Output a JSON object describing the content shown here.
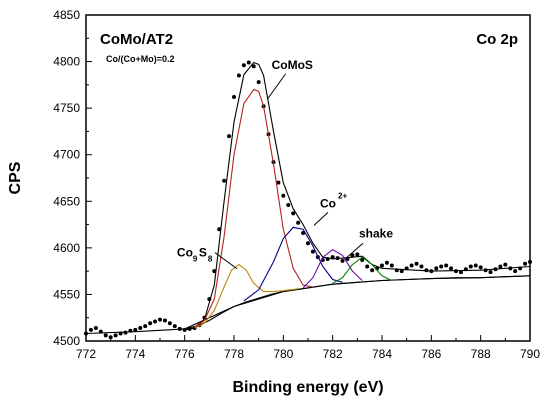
{
  "chart_data": {
    "type": "line",
    "title": "CoMo/AT2",
    "subtitle": "Co/(Co+Mo)=0.2",
    "panel_label": "Co 2p",
    "xlabel": "Binding energy (eV)",
    "ylabel": "CPS",
    "xlim": [
      772,
      790
    ],
    "ylim": [
      4500,
      4850
    ],
    "x_ticks": [
      772,
      774,
      776,
      778,
      780,
      782,
      784,
      786,
      788,
      790
    ],
    "y_ticks": [
      4500,
      4550,
      4600,
      4650,
      4700,
      4750,
      4800,
      4850
    ],
    "grid": false,
    "legend": "none",
    "annotations": [
      {
        "text": "CoMoS",
        "at": [
          779.2,
          4790
        ]
      },
      {
        "text": "Co",
        "sup": "2+",
        "at": [
          781.0,
          4622
        ]
      },
      {
        "text": "shake",
        "at": [
          782.5,
          4592
        ]
      },
      {
        "text": "Co",
        "sub1": "9",
        "mid": "S",
        "sub2": "8",
        "at": [
          778.2,
          4582
        ]
      }
    ],
    "series": [
      {
        "name": "",
        "style": "dots",
        "color": "#000000",
        "x": [
          772.0,
          772.2,
          772.4,
          772.6,
          772.8,
          773.0,
          773.2,
          773.4,
          773.6,
          773.8,
          774.0,
          774.2,
          774.4,
          774.6,
          774.8,
          775.0,
          775.2,
          775.4,
          775.6,
          775.8,
          776.0,
          776.2,
          776.4,
          776.6,
          776.8,
          777.0,
          777.2,
          777.4,
          777.6,
          777.8,
          778.0,
          778.2,
          778.4,
          778.6,
          778.8,
          779.0,
          779.2,
          779.4,
          779.6,
          779.8,
          780.0,
          780.2,
          780.4,
          780.6,
          780.8,
          781.0,
          781.2,
          781.4,
          781.6,
          781.8,
          782.0,
          782.2,
          782.4,
          782.6,
          782.8,
          783.0,
          783.2,
          783.4,
          783.6,
          783.8,
          784.0,
          784.2,
          784.4,
          784.6,
          784.8,
          785.0,
          785.2,
          785.4,
          785.6,
          785.8,
          786.0,
          786.2,
          786.4,
          786.6,
          786.8,
          787.0,
          787.2,
          787.4,
          787.6,
          787.8,
          788.0,
          788.2,
          788.4,
          788.6,
          788.8,
          789.0,
          789.2,
          789.4,
          789.6,
          789.8,
          790.0
        ],
        "y": [
          4508,
          4512,
          4514,
          4510,
          4506,
          4504,
          4506,
          4508,
          4509,
          4511,
          4512,
          4514,
          4516,
          4519,
          4521,
          4523,
          4522,
          4519,
          4516,
          4513,
          4512,
          4513,
          4514,
          4517,
          4525,
          4545,
          4575,
          4620,
          4672,
          4720,
          4762,
          4785,
          4796,
          4799,
          4795,
          4778,
          4752,
          4722,
          4692,
          4670,
          4656,
          4646,
          4637,
          4627,
          4616,
          4605,
          4596,
          4590,
          4587,
          4588,
          4590,
          4589,
          4586,
          4588,
          4592,
          4593,
          4587,
          4580,
          4576,
          4578,
          4581,
          4584,
          4581,
          4576,
          4575,
          4578,
          4581,
          4583,
          4580,
          4576,
          4575,
          4578,
          4580,
          4581,
          4578,
          4575,
          4574,
          4577,
          4580,
          4581,
          4579,
          4576,
          4574,
          4577,
          4580,
          4582,
          4578,
          4575,
          4578,
          4583,
          4585
        ]
      },
      {
        "name": "",
        "style": "line",
        "color": "#000000",
        "x": [
          776.0,
          776.4,
          776.8,
          777.2,
          777.6,
          778.0,
          778.4,
          778.8,
          779.0,
          779.2,
          779.6,
          780.0,
          780.4,
          780.8,
          781.2,
          781.6,
          782.0,
          782.4,
          782.8,
          783.2,
          783.6,
          784.0,
          786.0,
          788.0,
          790.0
        ],
        "y": [
          4512,
          4514,
          4523,
          4560,
          4650,
          4735,
          4786,
          4799,
          4797,
          4785,
          4725,
          4670,
          4642,
          4625,
          4605,
          4590,
          4588,
          4589,
          4590,
          4591,
          4582,
          4578,
          4575,
          4576,
          4580
        ]
      },
      {
        "name": "",
        "style": "line",
        "color": "#000000",
        "x": [
          776.0,
          776.5,
          777.0,
          777.5,
          778.0,
          778.5,
          779.0,
          779.5,
          780.0,
          780.5,
          781.0,
          781.5,
          782.0,
          782.5,
          783.0,
          784.0,
          785.0,
          786.0,
          787.0,
          788.0,
          789.0,
          790.0
        ],
        "y": [
          4513,
          4516,
          4522,
          4530,
          4537,
          4542,
          4546,
          4550,
          4553,
          4555,
          4557,
          4559,
          4561,
          4562,
          4563,
          4565,
          4566,
          4567,
          4568,
          4568,
          4569,
          4570
        ]
      },
      {
        "name": "",
        "style": "line",
        "color": "#000000",
        "x": [
          772.0,
          774.0,
          776.0,
          778.0,
          780.0,
          782.0,
          784.0,
          786.0,
          788.0,
          790.0
        ],
        "y": [
          4508,
          4510,
          4513,
          4537,
          4553,
          4561,
          4565,
          4567,
          4568,
          4570
        ]
      },
      {
        "name": "",
        "style": "line",
        "color": "#b8860b",
        "x": [
          776.4,
          776.8,
          777.2,
          777.6,
          777.9,
          778.2,
          778.5,
          778.8,
          779.2,
          779.6,
          780.0,
          780.6
        ],
        "y": [
          4514,
          4519,
          4533,
          4558,
          4576,
          4582,
          4576,
          4562,
          4553,
          4553,
          4554,
          4556
        ]
      },
      {
        "name": "",
        "style": "line",
        "color": "#b22222",
        "x": [
          776.4,
          776.8,
          777.2,
          777.6,
          778.0,
          778.4,
          778.8,
          779.0,
          779.2,
          779.6,
          780.0,
          780.4,
          780.8,
          781.2
        ],
        "y": [
          4515,
          4522,
          4545,
          4612,
          4700,
          4755,
          4770,
          4768,
          4752,
          4690,
          4620,
          4578,
          4560,
          4558
        ]
      },
      {
        "name": "",
        "style": "line",
        "color": "#00008b",
        "x": [
          778.4,
          779.0,
          779.6,
          780.0,
          780.4,
          780.8,
          781.2,
          781.6,
          782.0,
          782.4
        ],
        "y": [
          4543,
          4555,
          4585,
          4610,
          4622,
          4620,
          4602,
          4580,
          4566,
          4563
        ]
      },
      {
        "name": "",
        "style": "line",
        "color": "#6a0dad",
        "x": [
          780.8,
          781.2,
          781.6,
          782.0,
          782.4,
          782.8,
          783.2
        ],
        "y": [
          4557,
          4568,
          4590,
          4598,
          4592,
          4575,
          4565
        ]
      },
      {
        "name": "",
        "style": "line",
        "color": "#008000",
        "x": [
          782.0,
          782.4,
          782.8,
          783.2,
          783.6,
          784.0,
          784.4
        ],
        "y": [
          4562,
          4568,
          4582,
          4590,
          4582,
          4570,
          4565
        ]
      }
    ]
  }
}
